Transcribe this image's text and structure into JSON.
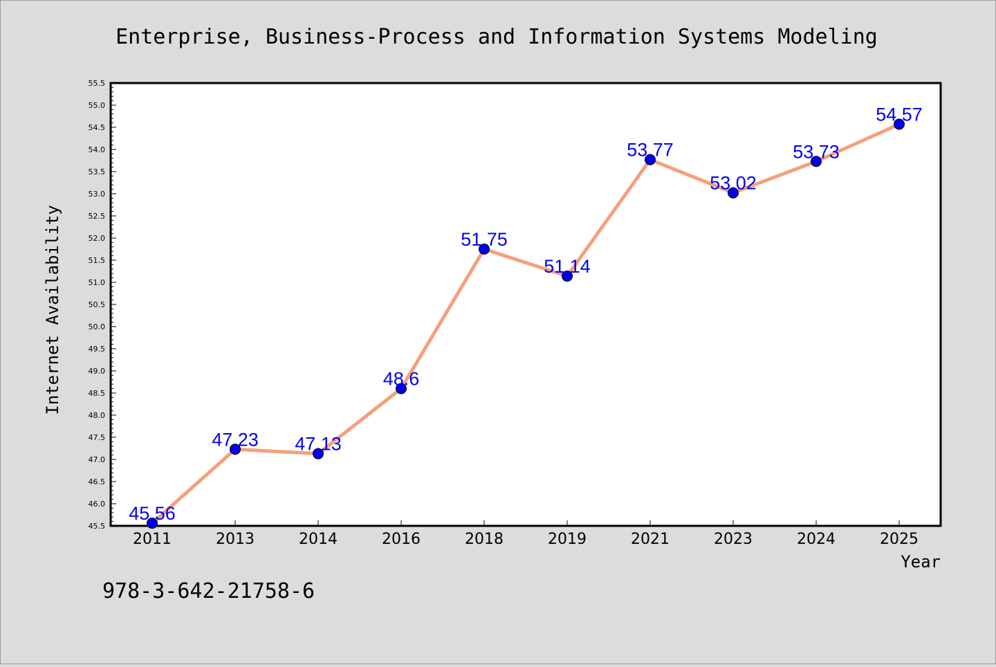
{
  "chart_data": {
    "type": "line",
    "title": "Enterprise, Business-Process and Information Systems Modeling",
    "xlabel": "Year",
    "ylabel": "Internet Availability",
    "categories": [
      "2011",
      "2013",
      "2014",
      "2016",
      "2018",
      "2019",
      "2021",
      "2023",
      "2024",
      "2025"
    ],
    "series": [
      {
        "values": [
          45.56,
          47.23,
          47.13,
          48.6,
          51.75,
          51.14,
          53.77,
          53.02,
          53.73,
          54.57
        ],
        "labels": [
          "45.56",
          "47.23",
          "47.13",
          "48.6",
          "51.75",
          "51.14",
          "53.77",
          "53.02",
          "53.73",
          "54.57"
        ]
      }
    ],
    "ylim": [
      45.5,
      55.5
    ],
    "yticks": [
      "45.5",
      "46.0",
      "46.5",
      "47.0",
      "47.5",
      "48.0",
      "48.5",
      "49.0",
      "49.5",
      "50.0",
      "50.5",
      "51.0",
      "51.5",
      "52.0",
      "52.5",
      "53.0",
      "53.5",
      "54.0",
      "54.5",
      "55.0",
      "55.5"
    ],
    "grid": false,
    "colors": {
      "line": "#f4a07c",
      "marker": "#0000ee",
      "label": "#0000ee",
      "background": "#dcdcdc",
      "plot_background": "#ffffff"
    }
  },
  "footer_text": "978-3-642-21758-6"
}
